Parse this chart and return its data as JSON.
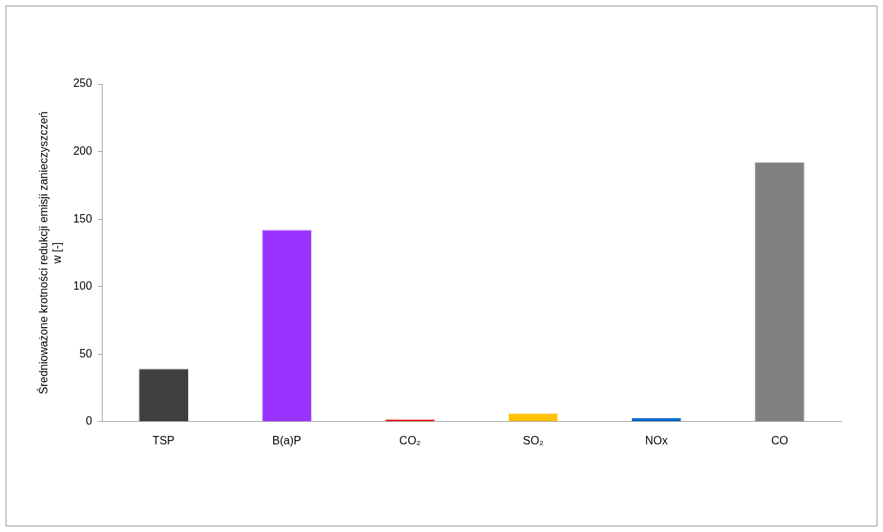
{
  "chart_data": {
    "type": "bar",
    "ylabel": "Średnioważone krotności redukcji emisji zanieczyszczeń w [-]",
    "categories": [
      "TSP",
      "B(a)P",
      "CO₂",
      "SO₂",
      "NOx",
      "CO"
    ],
    "values": [
      39,
      142,
      1.5,
      6,
      2.5,
      192
    ],
    "colors": [
      "#404040",
      "#9933ff",
      "#ee1111",
      "#ffc000",
      "#0066cc",
      "#808080"
    ],
    "ylim": [
      0,
      250
    ],
    "yticks": [
      0,
      50,
      100,
      150,
      200,
      250
    ],
    "grid": false,
    "legend": false
  }
}
